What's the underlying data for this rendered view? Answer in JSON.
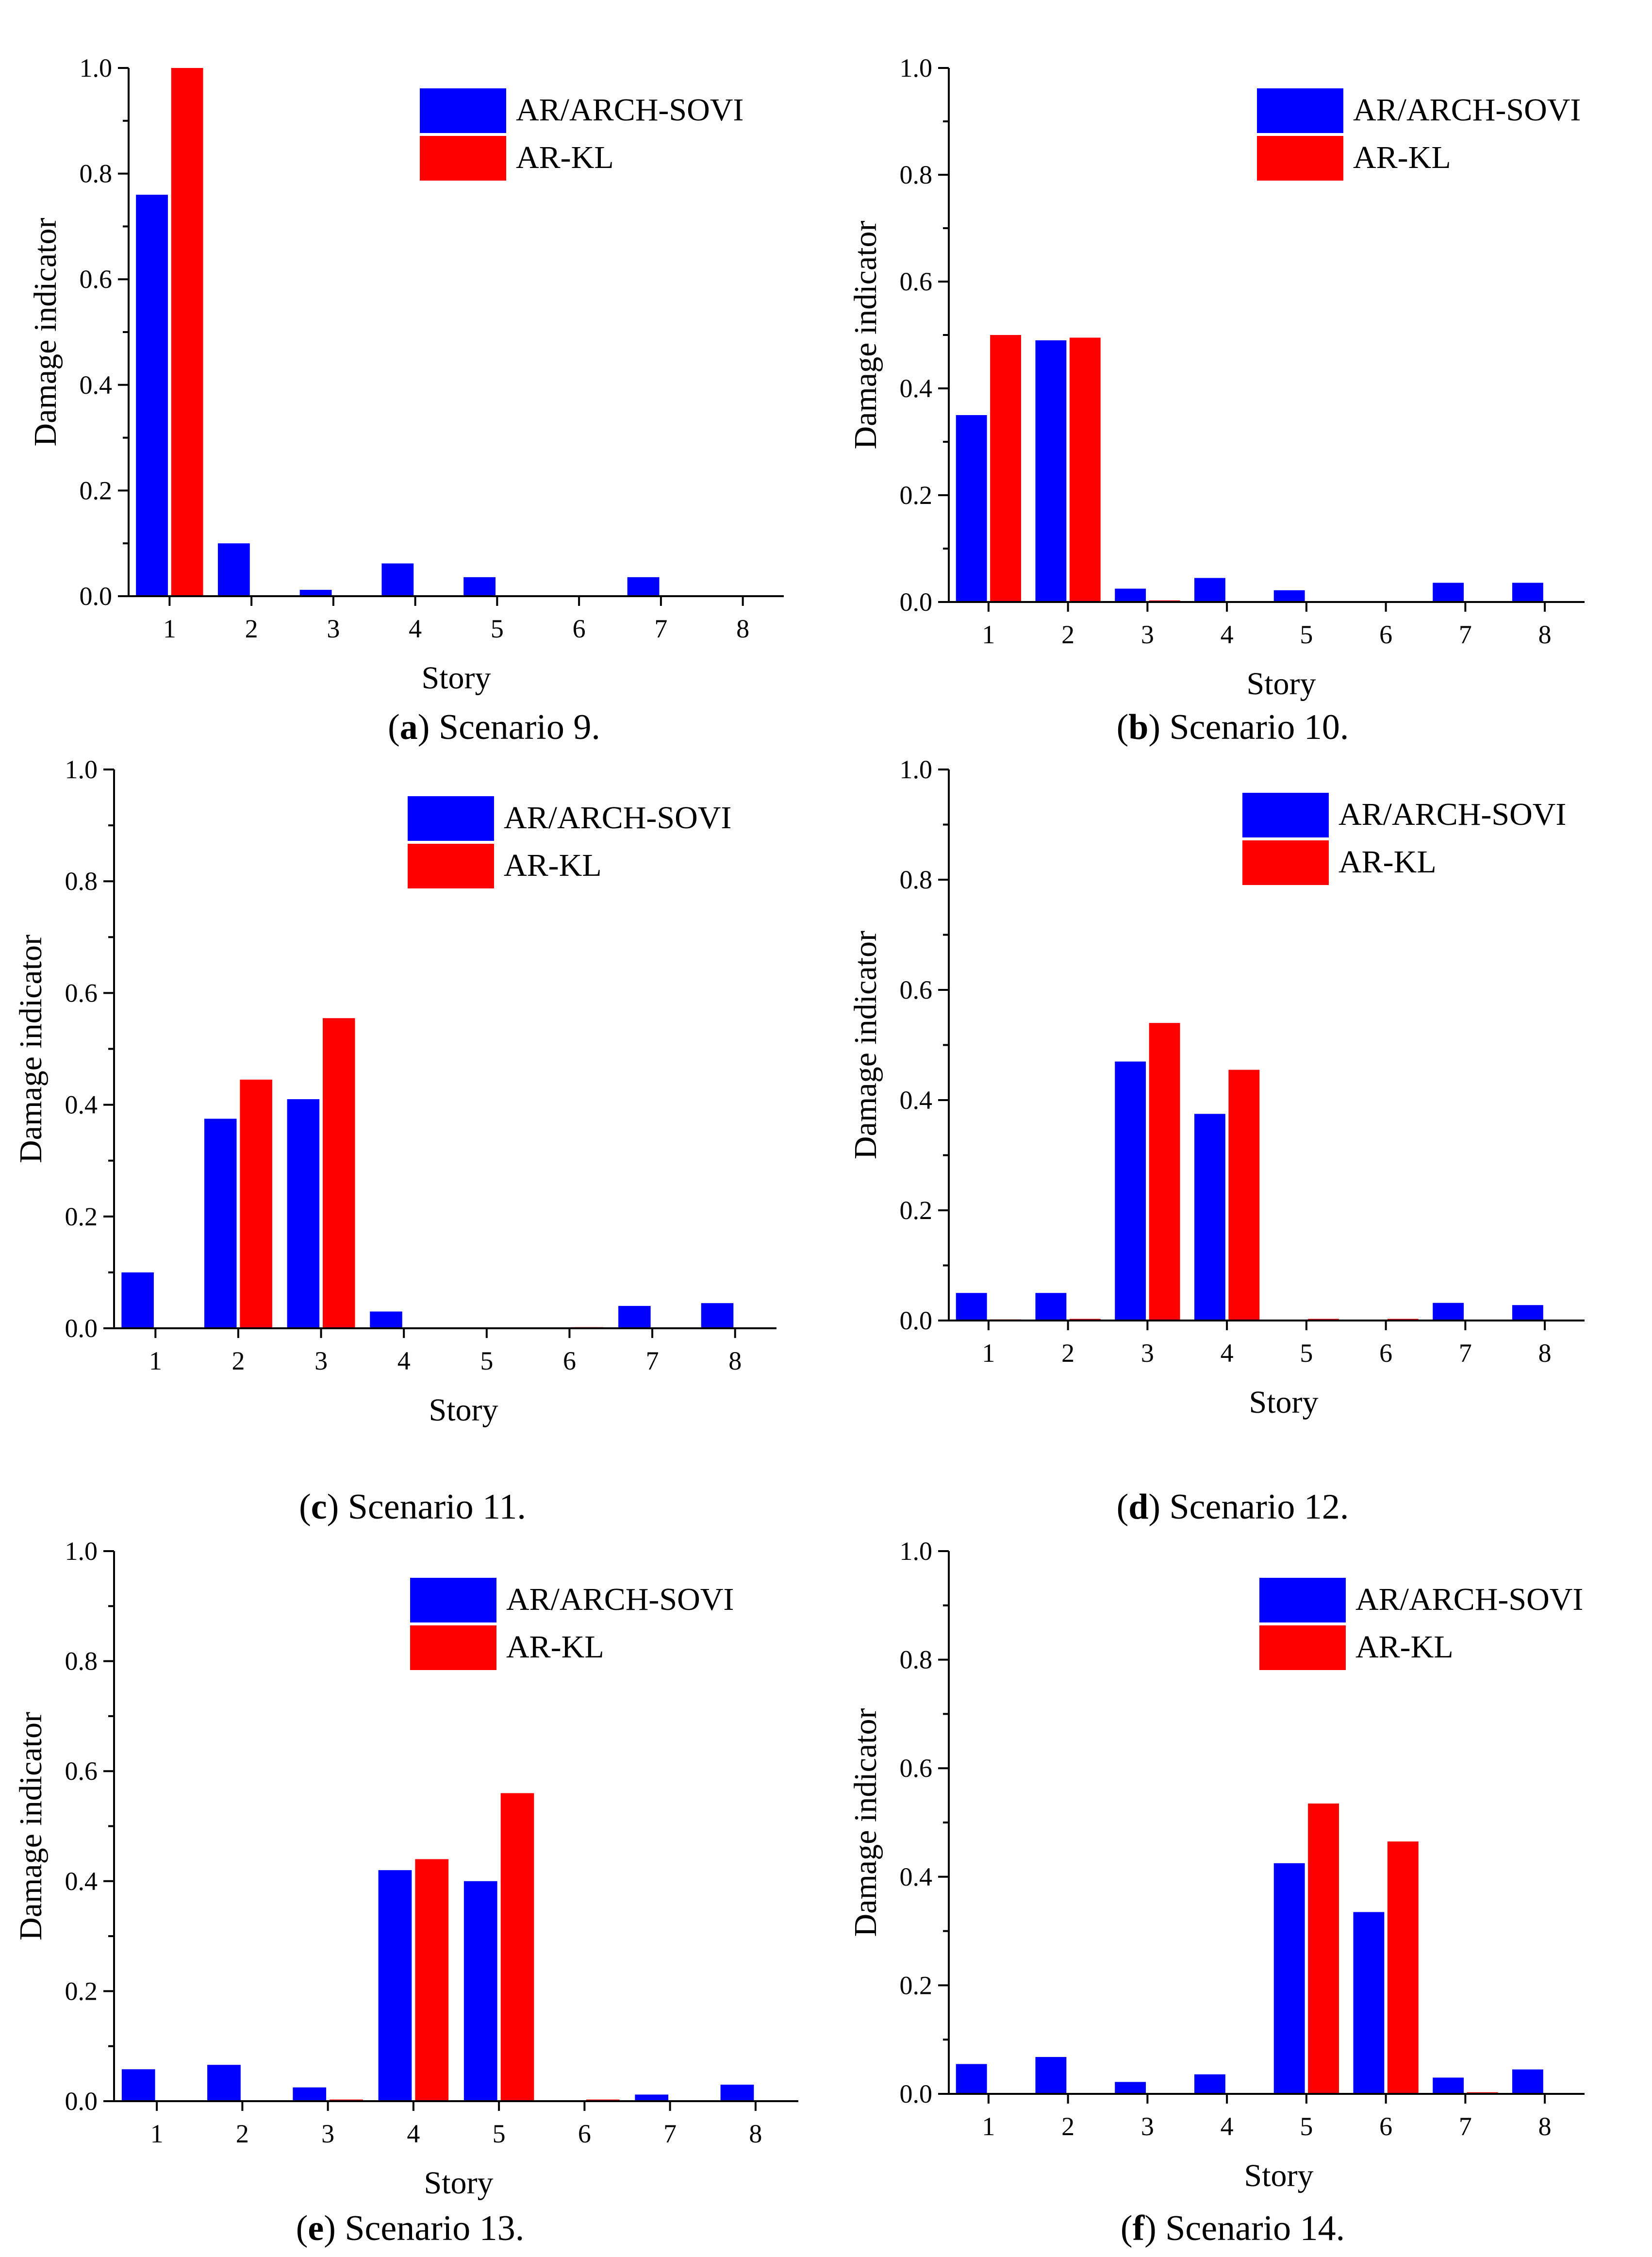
{
  "figure": {
    "chart_data": [
      {
        "type": "bar",
        "caption_letter": "a",
        "caption_text": "Scenario 9.",
        "xlabel": "Story",
        "ylabel": "Damage indicator",
        "categories": [
          "1",
          "2",
          "3",
          "4",
          "5",
          "6",
          "7",
          "8"
        ],
        "ylim": [
          0,
          1.0
        ],
        "yticks": [
          "0.0",
          "0.2",
          "0.4",
          "0.6",
          "0.8",
          "1.0"
        ],
        "legend_position": "top-right",
        "series": [
          {
            "name": "AR/ARCH-SOVI",
            "color": "#0000FF",
            "values": [
              0.76,
              0.1,
              0.012,
              0.062,
              0.036,
              0.0,
              0.036,
              0.0
            ]
          },
          {
            "name": "AR-KL",
            "color": "#FF0000",
            "values": [
              1.0,
              0.0,
              0.0,
              0.0,
              0.0,
              0.0,
              0.0,
              0.0
            ]
          }
        ]
      },
      {
        "type": "bar",
        "caption_letter": "b",
        "caption_text": "Scenario 10.",
        "xlabel": "Story",
        "ylabel": "Damage indicator",
        "categories": [
          "1",
          "2",
          "3",
          "4",
          "5",
          "6",
          "7",
          "8"
        ],
        "ylim": [
          0,
          1.0
        ],
        "yticks": [
          "0.0",
          "0.2",
          "0.4",
          "0.6",
          "0.8",
          "1.0"
        ],
        "legend_position": "top-right",
        "series": [
          {
            "name": "AR/ARCH-SOVI",
            "color": "#0000FF",
            "values": [
              0.35,
              0.49,
              0.025,
              0.045,
              0.022,
              0.0,
              0.036,
              0.036
            ]
          },
          {
            "name": "AR-KL",
            "color": "#FF0000",
            "values": [
              0.5,
              0.495,
              0.003,
              0.0,
              0.0,
              0.0,
              0.0,
              0.0
            ]
          }
        ]
      },
      {
        "type": "bar",
        "caption_letter": "c",
        "caption_text": "Scenario 11.",
        "xlabel": "Story",
        "ylabel": "Damage indicator",
        "categories": [
          "1",
          "2",
          "3",
          "4",
          "5",
          "6",
          "7",
          "8"
        ],
        "ylim": [
          0,
          1.0
        ],
        "yticks": [
          "0.0",
          "0.2",
          "0.4",
          "0.6",
          "0.8",
          "1.0"
        ],
        "legend_position": "top-right",
        "series": [
          {
            "name": "AR/ARCH-SOVI",
            "color": "#0000FF",
            "values": [
              0.1,
              0.375,
              0.41,
              0.03,
              0.0,
              0.0,
              0.04,
              0.045
            ]
          },
          {
            "name": "AR-KL",
            "color": "#FF0000",
            "values": [
              0.0,
              0.445,
              0.555,
              0.0,
              0.0,
              0.002,
              0.0,
              0.0
            ]
          }
        ]
      },
      {
        "type": "bar",
        "caption_letter": "d",
        "caption_text": "Scenario 12.",
        "xlabel": "Story",
        "ylabel": "Damage indicator",
        "categories": [
          "1",
          "2",
          "3",
          "4",
          "5",
          "6",
          "7",
          "8"
        ],
        "ylim": [
          0,
          1.0
        ],
        "yticks": [
          "0.0",
          "0.2",
          "0.4",
          "0.6",
          "0.8",
          "1.0"
        ],
        "legend_position": "top-right",
        "series": [
          {
            "name": "AR/ARCH-SOVI",
            "color": "#0000FF",
            "values": [
              0.05,
              0.05,
              0.47,
              0.375,
              0.0,
              0.0,
              0.032,
              0.028
            ]
          },
          {
            "name": "AR-KL",
            "color": "#FF0000",
            "values": [
              0.002,
              0.003,
              0.54,
              0.455,
              0.003,
              0.003,
              0.0,
              0.0
            ]
          }
        ]
      },
      {
        "type": "bar",
        "caption_letter": "e",
        "caption_text": "Scenario 13.",
        "xlabel": "Story",
        "ylabel": "Damage indicator",
        "categories": [
          "1",
          "2",
          "3",
          "4",
          "5",
          "6",
          "7",
          "8"
        ],
        "ylim": [
          0,
          1.0
        ],
        "yticks": [
          "0.0",
          "0.2",
          "0.4",
          "0.6",
          "0.8",
          "1.0"
        ],
        "legend_position": "top-right",
        "series": [
          {
            "name": "AR/ARCH-SOVI",
            "color": "#0000FF",
            "values": [
              0.058,
              0.066,
              0.025,
              0.42,
              0.4,
              0.0,
              0.012,
              0.03
            ]
          },
          {
            "name": "AR-KL",
            "color": "#FF0000",
            "values": [
              0.0,
              0.0,
              0.003,
              0.44,
              0.56,
              0.003,
              0.0,
              0.0
            ]
          }
        ]
      },
      {
        "type": "bar",
        "caption_letter": "f",
        "caption_text": "Scenario 14.",
        "xlabel": "Story",
        "ylabel": "Damage indicator",
        "categories": [
          "1",
          "2",
          "3",
          "4",
          "5",
          "6",
          "7",
          "8"
        ],
        "ylim": [
          0,
          1.0
        ],
        "yticks": [
          "0.0",
          "0.2",
          "0.4",
          "0.6",
          "0.8",
          "1.0"
        ],
        "legend_position": "top-right",
        "series": [
          {
            "name": "AR/ARCH-SOVI",
            "color": "#0000FF",
            "values": [
              0.055,
              0.068,
              0.022,
              0.036,
              0.425,
              0.335,
              0.03,
              0.045
            ]
          },
          {
            "name": "AR-KL",
            "color": "#FF0000",
            "values": [
              0.0,
              0.0,
              0.0,
              0.0,
              0.535,
              0.465,
              0.003,
              0.0
            ]
          }
        ]
      }
    ]
  }
}
